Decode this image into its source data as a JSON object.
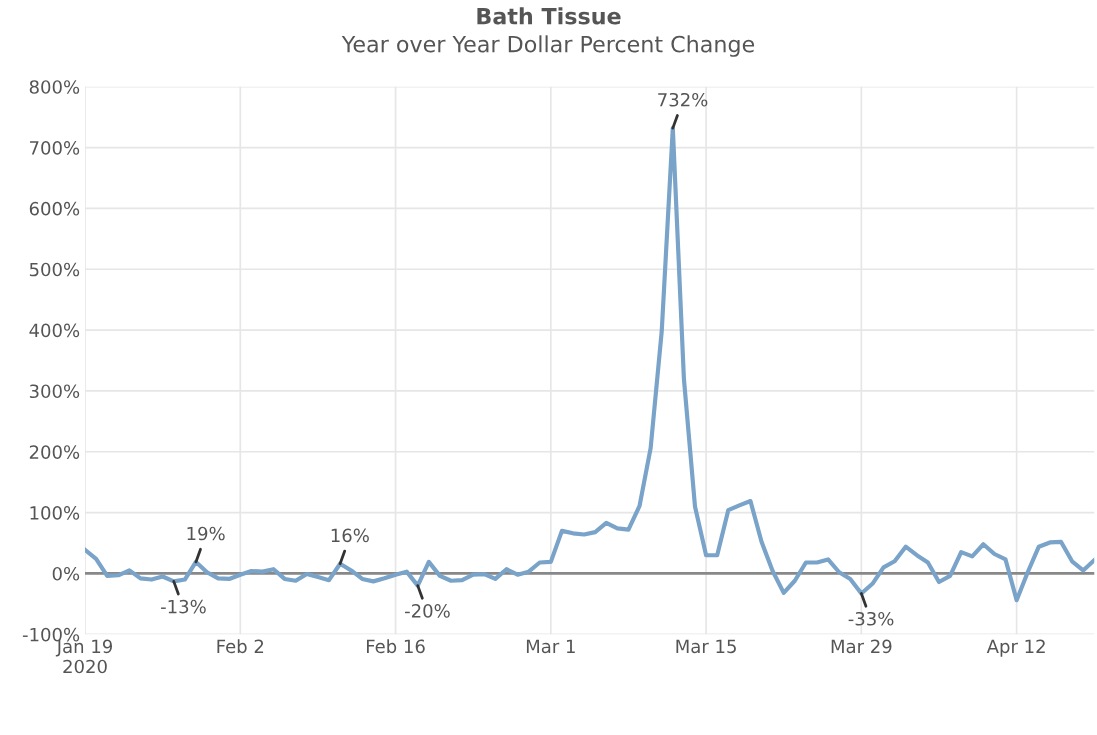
{
  "chart_data": {
    "type": "line",
    "title": "Bath Tissue",
    "subtitle": "Year over Year Dollar Percent Change",
    "x": [
      "2020-01-19",
      "2020-01-20",
      "2020-01-21",
      "2020-01-22",
      "2020-01-23",
      "2020-01-24",
      "2020-01-25",
      "2020-01-26",
      "2020-01-27",
      "2020-01-28",
      "2020-01-29",
      "2020-01-30",
      "2020-01-31",
      "2020-02-01",
      "2020-02-02",
      "2020-02-03",
      "2020-02-04",
      "2020-02-05",
      "2020-02-06",
      "2020-02-07",
      "2020-02-08",
      "2020-02-09",
      "2020-02-10",
      "2020-02-11",
      "2020-02-12",
      "2020-02-13",
      "2020-02-14",
      "2020-02-15",
      "2020-02-16",
      "2020-02-17",
      "2020-02-18",
      "2020-02-19",
      "2020-02-20",
      "2020-02-21",
      "2020-02-22",
      "2020-02-23",
      "2020-02-24",
      "2020-02-25",
      "2020-02-26",
      "2020-02-27",
      "2020-02-28",
      "2020-02-29",
      "2020-03-01",
      "2020-03-02",
      "2020-03-03",
      "2020-03-04",
      "2020-03-05",
      "2020-03-06",
      "2020-03-07",
      "2020-03-08",
      "2020-03-09",
      "2020-03-10",
      "2020-03-11",
      "2020-03-12",
      "2020-03-13",
      "2020-03-14",
      "2020-03-15",
      "2020-03-16",
      "2020-03-17",
      "2020-03-18",
      "2020-03-19",
      "2020-03-20",
      "2020-03-21",
      "2020-03-22",
      "2020-03-23",
      "2020-03-24",
      "2020-03-25",
      "2020-03-26",
      "2020-03-27",
      "2020-03-28",
      "2020-03-29",
      "2020-03-30",
      "2020-03-31",
      "2020-04-01",
      "2020-04-02",
      "2020-04-03",
      "2020-04-04",
      "2020-04-05",
      "2020-04-06",
      "2020-04-07",
      "2020-04-08",
      "2020-04-09",
      "2020-04-10",
      "2020-04-11",
      "2020-04-12",
      "2020-04-13",
      "2020-04-14",
      "2020-04-15",
      "2020-04-16",
      "2020-04-17",
      "2020-04-18",
      "2020-04-19"
    ],
    "series": [
      {
        "color": "#79a3c9",
        "values": [
          39,
          24,
          -4,
          -3,
          5,
          -8,
          -10,
          -5,
          -13,
          -10,
          19,
          2,
          -8,
          -9,
          -2,
          4,
          3,
          7,
          -9,
          -12,
          -1,
          -6,
          -11,
          16,
          5,
          -9,
          -13,
          -8,
          -2,
          3,
          -20,
          19,
          -4,
          -12,
          -11,
          -2,
          -1,
          -9,
          7,
          -2,
          3,
          18,
          19,
          70,
          66,
          64,
          68,
          83,
          74,
          72,
          111,
          206,
          398,
          732,
          320,
          110,
          30,
          30,
          104,
          112,
          119,
          52,
          4,
          -32,
          -12,
          18,
          18,
          23,
          2,
          -9,
          -33,
          -17,
          10,
          20,
          44,
          30,
          18,
          -14,
          -4,
          35,
          28,
          48,
          32,
          23,
          -44,
          2,
          44,
          51,
          52,
          20,
          5,
          22
        ]
      }
    ],
    "xlim": [
      "2020-01-19",
      "2020-04-19"
    ],
    "xticks": [
      {
        "value": "2020-01-19",
        "label": "Jan 19\n2020"
      },
      {
        "value": "2020-02-02",
        "label": "Feb 2"
      },
      {
        "value": "2020-02-16",
        "label": "Feb 16"
      },
      {
        "value": "2020-03-01",
        "label": "Mar 1"
      },
      {
        "value": "2020-03-15",
        "label": "Mar 15"
      },
      {
        "value": "2020-03-29",
        "label": "Mar 29"
      },
      {
        "value": "2020-04-12",
        "label": "Apr 12"
      }
    ],
    "ylim": [
      -100,
      800
    ],
    "yticks": [
      {
        "value": -100,
        "label": "-100%"
      },
      {
        "value": 0,
        "label": "0%"
      },
      {
        "value": 100,
        "label": "100%"
      },
      {
        "value": 200,
        "label": "200%"
      },
      {
        "value": 300,
        "label": "300%"
      },
      {
        "value": 400,
        "label": "400%"
      },
      {
        "value": 500,
        "label": "500%"
      },
      {
        "value": 600,
        "label": "600%"
      },
      {
        "value": 700,
        "label": "700%"
      },
      {
        "value": 800,
        "label": "800%"
      }
    ],
    "ref_lines": [
      {
        "axis": "y",
        "value": 0,
        "color": "#888888"
      }
    ],
    "grid": true,
    "legend": false,
    "marker": "none",
    "line_style": "solid",
    "annotations": [
      {
        "text": "-13%",
        "x": "2020-01-27",
        "y": -13
      },
      {
        "text": "19%",
        "x": "2020-01-29",
        "y": 19
      },
      {
        "text": "16%",
        "x": "2020-02-11",
        "y": 16
      },
      {
        "text": "-20%",
        "x": "2020-02-18",
        "y": -20
      },
      {
        "text": "732%",
        "x": "2020-03-12",
        "y": 732
      },
      {
        "text": "-33%",
        "x": "2020-03-29",
        "y": -33
      }
    ]
  }
}
